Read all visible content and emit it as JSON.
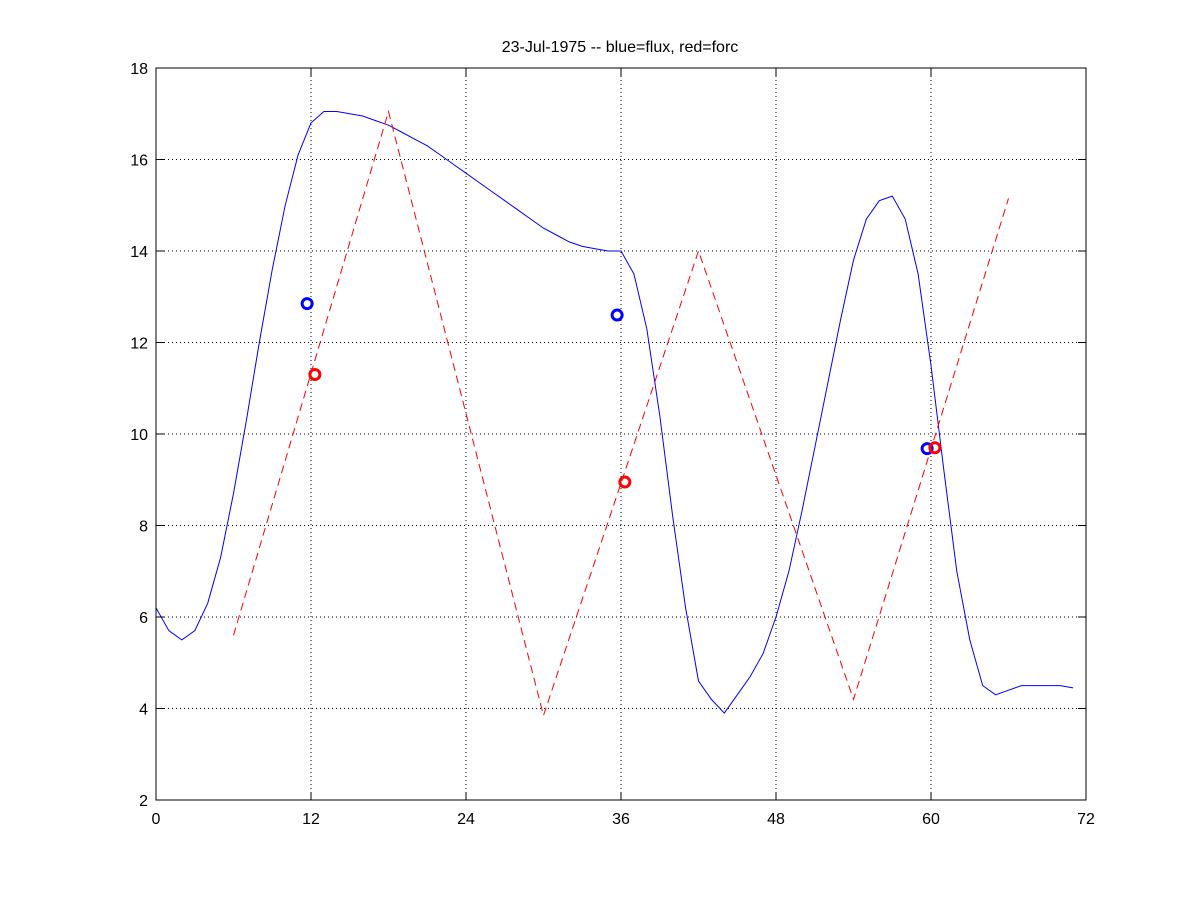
{
  "chart_data": {
    "type": "line",
    "title": "23-Jul-1975 -- blue=flux, red=forc",
    "xlabel": "",
    "ylabel": "",
    "xlim": [
      0,
      72
    ],
    "ylim": [
      2,
      18
    ],
    "xticks": [
      0,
      12,
      24,
      36,
      48,
      60,
      72
    ],
    "yticks": [
      2,
      4,
      6,
      8,
      10,
      12,
      14,
      16,
      18
    ],
    "grid": true,
    "colors": {
      "flux": "#0000ff",
      "forc": "#ff0000",
      "grid": "#000000"
    },
    "series": [
      {
        "style": "solid",
        "color": "#0000ff",
        "x": [
          0,
          1,
          2,
          3,
          4,
          5,
          6,
          7,
          8,
          9,
          10,
          11,
          12,
          13,
          14,
          15,
          16,
          17,
          18,
          19,
          20,
          21,
          22,
          23,
          24,
          25,
          26,
          27,
          28,
          29,
          30,
          31,
          32,
          33,
          34,
          35,
          36,
          37,
          38,
          39,
          40,
          41,
          42,
          43,
          44,
          45,
          46,
          47,
          48,
          49,
          50,
          51,
          52,
          53,
          54,
          55,
          56,
          57,
          58,
          59,
          60,
          61,
          62,
          63,
          64,
          65,
          66,
          67,
          68,
          69,
          70,
          71
        ],
        "y": [
          6.2,
          5.7,
          5.5,
          5.7,
          6.3,
          7.3,
          8.7,
          10.3,
          12.0,
          13.6,
          15.0,
          16.1,
          16.8,
          17.05,
          17.05,
          17.0,
          16.95,
          16.85,
          16.75,
          16.6,
          16.45,
          16.3,
          16.1,
          15.9,
          15.7,
          15.5,
          15.3,
          15.1,
          14.9,
          14.7,
          14.5,
          14.35,
          14.2,
          14.1,
          14.05,
          14.0,
          14.0,
          13.5,
          12.3,
          10.4,
          8.2,
          6.2,
          4.6,
          4.2,
          3.9,
          4.3,
          4.7,
          5.2,
          6.0,
          7.0,
          8.3,
          9.7,
          11.1,
          12.5,
          13.8,
          14.7,
          15.1,
          15.2,
          14.7,
          13.5,
          11.5,
          9.2,
          7.0,
          5.5,
          4.5,
          4.3,
          4.4,
          4.5,
          4.5,
          4.5,
          4.5,
          4.45
        ]
      },
      {
        "style": "dashed",
        "color": "#ff0000",
        "x": [
          6,
          18,
          30,
          42,
          54,
          66
        ],
        "y": [
          5.6,
          17.05,
          3.85,
          14.0,
          4.2,
          15.15
        ]
      }
    ],
    "markers": [
      {
        "color": "#0000ff",
        "x": 11.7,
        "y": 12.85
      },
      {
        "color": "#ff0000",
        "x": 12.3,
        "y": 11.3
      },
      {
        "color": "#0000ff",
        "x": 35.7,
        "y": 12.6
      },
      {
        "color": "#ff0000",
        "x": 36.3,
        "y": 8.95
      },
      {
        "color": "#0000ff",
        "x": 59.7,
        "y": 9.68
      },
      {
        "color": "#ff0000",
        "x": 60.3,
        "y": 9.7
      }
    ]
  }
}
